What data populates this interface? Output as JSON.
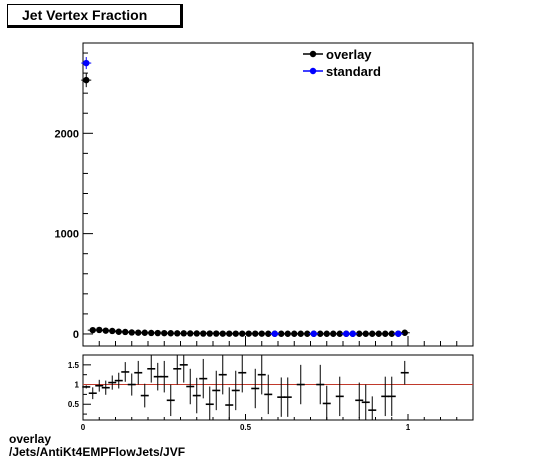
{
  "chart_data": {
    "type": "scatter",
    "title": "Jet Vertex Fraction",
    "main": {
      "xlim": [
        0,
        1.2
      ],
      "ylim": [
        -120,
        2900
      ],
      "y_ticks": [
        0,
        1000,
        2000
      ],
      "y_tick_labels": [
        "0",
        "1000",
        "2000"
      ],
      "series": [
        {
          "name": "overlay",
          "color": "#000000",
          "points": [
            {
              "x": 0.01,
              "y": 2530,
              "err": 70
            },
            {
              "x": 0.03,
              "y": 38
            },
            {
              "x": 0.05,
              "y": 40
            },
            {
              "x": 0.07,
              "y": 33
            },
            {
              "x": 0.09,
              "y": 30
            },
            {
              "x": 0.11,
              "y": 22
            },
            {
              "x": 0.13,
              "y": 20
            },
            {
              "x": 0.15,
              "y": 15
            },
            {
              "x": 0.17,
              "y": 13
            },
            {
              "x": 0.19,
              "y": 12
            },
            {
              "x": 0.21,
              "y": 10
            },
            {
              "x": 0.23,
              "y": 9
            },
            {
              "x": 0.25,
              "y": 8
            },
            {
              "x": 0.27,
              "y": 7
            },
            {
              "x": 0.29,
              "y": 6
            },
            {
              "x": 0.31,
              "y": 6
            },
            {
              "x": 0.33,
              "y": 5
            },
            {
              "x": 0.35,
              "y": 5
            },
            {
              "x": 0.37,
              "y": 4
            },
            {
              "x": 0.39,
              "y": 4
            },
            {
              "x": 0.41,
              "y": 4
            },
            {
              "x": 0.43,
              "y": 3
            },
            {
              "x": 0.45,
              "y": 3
            },
            {
              "x": 0.47,
              "y": 3
            },
            {
              "x": 0.49,
              "y": 3
            },
            {
              "x": 0.51,
              "y": 3
            },
            {
              "x": 0.53,
              "y": 3
            },
            {
              "x": 0.55,
              "y": 3
            },
            {
              "x": 0.57,
              "y": 2
            },
            {
              "x": 0.59,
              "y": 2
            },
            {
              "x": 0.61,
              "y": 2
            },
            {
              "x": 0.63,
              "y": 2
            },
            {
              "x": 0.65,
              "y": 2
            },
            {
              "x": 0.67,
              "y": 2
            },
            {
              "x": 0.69,
              "y": 2
            },
            {
              "x": 0.71,
              "y": 2
            },
            {
              "x": 0.73,
              "y": 2
            },
            {
              "x": 0.75,
              "y": 2
            },
            {
              "x": 0.77,
              "y": 2
            },
            {
              "x": 0.79,
              "y": 2
            },
            {
              "x": 0.81,
              "y": 2
            },
            {
              "x": 0.83,
              "y": 2
            },
            {
              "x": 0.85,
              "y": 2
            },
            {
              "x": 0.87,
              "y": 2
            },
            {
              "x": 0.89,
              "y": 2
            },
            {
              "x": 0.91,
              "y": 2
            },
            {
              "x": 0.93,
              "y": 2
            },
            {
              "x": 0.95,
              "y": 2
            },
            {
              "x": 0.97,
              "y": 3
            },
            {
              "x": 0.99,
              "y": 12
            }
          ]
        },
        {
          "name": "standard",
          "color": "#0000ff",
          "points": [
            {
              "x": 0.01,
              "y": 2700,
              "err": 60
            },
            {
              "x": 0.59,
              "y": 2
            },
            {
              "x": 0.71,
              "y": 2
            },
            {
              "x": 0.81,
              "y": 2
            },
            {
              "x": 0.83,
              "y": 2
            },
            {
              "x": 0.97,
              "y": 2
            }
          ]
        }
      ]
    },
    "ratio": {
      "xlim": [
        0,
        1.2
      ],
      "ylim": [
        0.1,
        1.75
      ],
      "x_ticks": [
        0,
        0.5,
        1
      ],
      "x_tick_labels": [
        "0",
        "0.5",
        "1"
      ],
      "y_ticks": [
        0.5,
        1,
        1.5
      ],
      "y_tick_labels": [
        "0.5",
        "1",
        "1.5"
      ],
      "reference_line": 1,
      "reference_color": "#c0392b",
      "points": [
        {
          "x": 0.01,
          "y": 0.94,
          "err": 0.04
        },
        {
          "x": 0.03,
          "y": 0.78,
          "err": 0.15
        },
        {
          "x": 0.05,
          "y": 0.97,
          "err": 0.15
        },
        {
          "x": 0.07,
          "y": 0.92,
          "err": 0.18
        },
        {
          "x": 0.09,
          "y": 1.05,
          "err": 0.18
        },
        {
          "x": 0.11,
          "y": 1.1,
          "err": 0.2
        },
        {
          "x": 0.13,
          "y": 1.32,
          "err": 0.25
        },
        {
          "x": 0.15,
          "y": 1.0,
          "err": 0.28
        },
        {
          "x": 0.17,
          "y": 1.3,
          "err": 0.3
        },
        {
          "x": 0.19,
          "y": 0.72,
          "err": 0.3
        },
        {
          "x": 0.21,
          "y": 1.4,
          "err": 0.35
        },
        {
          "x": 0.23,
          "y": 1.2,
          "err": 0.35
        },
        {
          "x": 0.25,
          "y": 1.2,
          "err": 0.4
        },
        {
          "x": 0.27,
          "y": 0.6,
          "err": 0.4
        },
        {
          "x": 0.29,
          "y": 1.4,
          "err": 0.4
        },
        {
          "x": 0.31,
          "y": 1.5,
          "err": 0.45
        },
        {
          "x": 0.33,
          "y": 0.95,
          "err": 0.45
        },
        {
          "x": 0.35,
          "y": 0.72,
          "err": 0.45
        },
        {
          "x": 0.37,
          "y": 1.15,
          "err": 0.5
        },
        {
          "x": 0.39,
          "y": 0.5,
          "err": 0.45
        },
        {
          "x": 0.41,
          "y": 0.85,
          "err": 0.5
        },
        {
          "x": 0.43,
          "y": 1.25,
          "err": 0.5
        },
        {
          "x": 0.45,
          "y": 0.48,
          "err": 0.45
        },
        {
          "x": 0.47,
          "y": 0.85,
          "err": 0.5
        },
        {
          "x": 0.49,
          "y": 1.3,
          "err": 0.5
        },
        {
          "x": 0.53,
          "y": 0.9,
          "err": 0.5
        },
        {
          "x": 0.55,
          "y": 1.25,
          "err": 0.5
        },
        {
          "x": 0.57,
          "y": 0.75,
          "err": 0.5
        },
        {
          "x": 0.61,
          "y": 0.68,
          "err": 0.5
        },
        {
          "x": 0.63,
          "y": 0.68,
          "err": 0.5
        },
        {
          "x": 0.67,
          "y": 1.0,
          "err": 0.5
        },
        {
          "x": 0.73,
          "y": 1.0,
          "err": 0.5
        },
        {
          "x": 0.75,
          "y": 0.52,
          "err": 0.45
        },
        {
          "x": 0.79,
          "y": 0.7,
          "err": 0.5
        },
        {
          "x": 0.85,
          "y": 0.6,
          "err": 0.45
        },
        {
          "x": 0.87,
          "y": 0.55,
          "err": 0.45
        },
        {
          "x": 0.89,
          "y": 0.35,
          "err": 0.35
        },
        {
          "x": 0.93,
          "y": 0.7,
          "err": 0.5
        },
        {
          "x": 0.95,
          "y": 0.7,
          "err": 0.5
        },
        {
          "x": 0.99,
          "y": 1.3,
          "err": 0.3
        }
      ]
    },
    "legend": {
      "placement": "top-right",
      "entries": [
        {
          "label": "overlay",
          "color": "#000000"
        },
        {
          "label": "standard",
          "color": "#0000ff"
        }
      ]
    },
    "footer_lines": [
      "overlay",
      "/Jets/AntiKt4EMPFlowJets/JVF"
    ]
  }
}
